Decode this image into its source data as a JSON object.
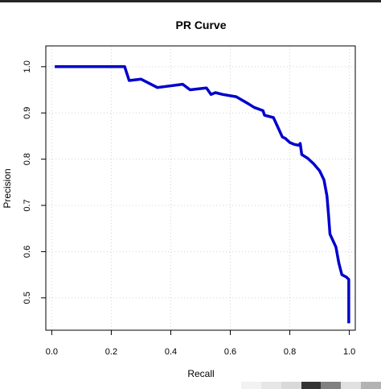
{
  "chart_data": {
    "type": "line",
    "title": "PR Curve",
    "xlabel": "Recall",
    "ylabel": "Precision",
    "xlim": [
      -0.02,
      1.02
    ],
    "ylim": [
      0.43,
      1.045
    ],
    "x_ticks": [
      0.0,
      0.2,
      0.4,
      0.6,
      0.8,
      1.0
    ],
    "x_tick_labels": [
      "0.0",
      "0.2",
      "0.4",
      "0.6",
      "0.8",
      "1.0"
    ],
    "y_ticks": [
      0.5,
      0.6,
      0.7,
      0.8,
      0.9,
      1.0
    ],
    "y_tick_labels": [
      "0.5",
      "0.6",
      "0.7",
      "0.8",
      "0.9",
      "1.0"
    ],
    "grid": true,
    "line_color": "#0000cd",
    "series": [
      {
        "x": [
          0.01,
          0.245,
          0.26,
          0.3,
          0.355,
          0.44,
          0.465,
          0.52,
          0.535,
          0.55,
          0.575,
          0.62,
          0.66,
          0.68,
          0.71,
          0.715,
          0.745,
          0.775,
          0.785,
          0.8,
          0.815,
          0.83,
          0.835,
          0.84,
          0.86,
          0.88,
          0.9,
          0.915,
          0.925,
          0.93,
          0.935,
          0.955,
          0.965,
          0.975,
          0.99,
          0.998,
          0.998
        ],
        "y": [
          1.0,
          1.0,
          0.97,
          0.973,
          0.955,
          0.962,
          0.95,
          0.954,
          0.94,
          0.944,
          0.94,
          0.935,
          0.92,
          0.912,
          0.905,
          0.895,
          0.89,
          0.848,
          0.845,
          0.836,
          0.832,
          0.83,
          0.834,
          0.81,
          0.802,
          0.79,
          0.775,
          0.755,
          0.72,
          0.68,
          0.638,
          0.61,
          0.575,
          0.55,
          0.545,
          0.54,
          0.445
        ]
      }
    ]
  },
  "bottom_swatches": [
    "#f2f2f2",
    "#e6e6e6",
    "#d9d9d9",
    "#333333",
    "#808080",
    "#e0e0e0",
    "#b3b3b3"
  ]
}
